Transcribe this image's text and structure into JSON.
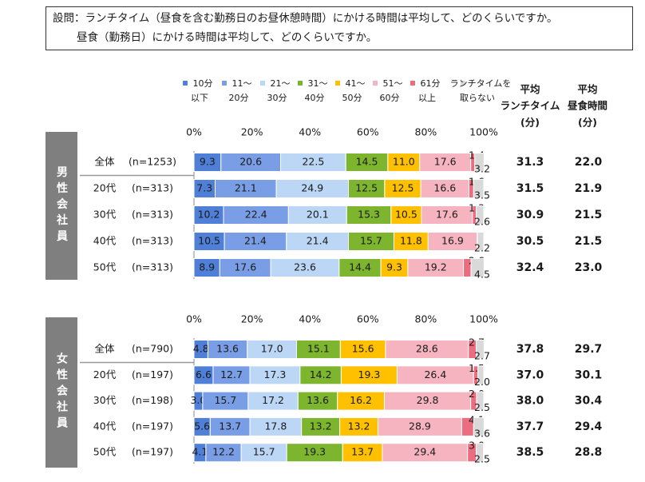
{
  "question": [
    "設問：ランチタイム（昼食を含む勤務日のお昼休憩時間）にかける時間は平均して、どのくらいですか。",
    "昼食（勤務日）にかける時間は平均して、どのくらいですか。"
  ],
  "legend": [
    {
      "name": "10分\n以下",
      "color": "#4f7fd6"
    },
    {
      "name": "11～\n20分",
      "color": "#7a9ee6"
    },
    {
      "name": "21～\n30分",
      "color": "#bcd6f6"
    },
    {
      "name": "31～\n40分",
      "color": "#7db52e"
    },
    {
      "name": "41～\n50分",
      "color": "#ffc000"
    },
    {
      "name": "51～\n60分",
      "color": "#f5b4bf"
    },
    {
      "name": "61分\n以上",
      "color": "#ec6d7f"
    },
    {
      "name": "ランチタイムを\n取らない",
      "color": "#d9d9d9"
    }
  ],
  "columns": [
    "平均\nランチタイム\n(分)",
    "平均\n昼食時間\n(分)"
  ],
  "chart_data": [
    {
      "type": "stacked_bar",
      "group": "男性会社員",
      "categories": [
        "全体",
        "20代",
        "30代",
        "40代",
        "50代"
      ],
      "n_labels": [
        "(n=1253)",
        "(n=313)",
        "(n=313)",
        "(n=313)",
        "(n=313)"
      ],
      "xlim": [
        0,
        100
      ],
      "xticks": [
        {
          "value": 0,
          "label": "0%"
        },
        {
          "value": 20,
          "label": "20%"
        },
        {
          "value": 40,
          "label": "40%"
        },
        {
          "value": 60,
          "label": "60%"
        },
        {
          "value": 80,
          "label": "80%"
        },
        {
          "value": 100,
          "label": "100%"
        }
      ],
      "series": [
        {
          "values": [
            9.3,
            7.3,
            10.2,
            10.5,
            8.9
          ],
          "value_labels": [
            "9.3",
            "7.3",
            "10.2",
            "10.5",
            "8.9"
          ]
        },
        {
          "values": [
            20.6,
            21.1,
            22.4,
            21.4,
            17.6
          ],
          "value_labels": [
            "20.6",
            "21.1",
            "22.4",
            "21.4",
            "17.6"
          ]
        },
        {
          "values": [
            22.5,
            24.9,
            20.1,
            21.4,
            23.6
          ],
          "value_labels": [
            "22.5",
            "24.9",
            "20.1",
            "21.4",
            "23.6"
          ]
        },
        {
          "values": [
            14.5,
            12.5,
            15.3,
            15.7,
            14.4
          ],
          "value_labels": [
            "14.5",
            "12.5",
            "15.3",
            "15.7",
            "14.4"
          ]
        },
        {
          "values": [
            11.0,
            12.5,
            10.5,
            11.8,
            9.3
          ],
          "value_labels": [
            "11.0",
            "12.5",
            "10.5",
            "11.8",
            "9.3"
          ]
        },
        {
          "values": [
            17.6,
            16.6,
            17.6,
            16.9,
            19.2
          ],
          "value_labels": [
            "17.6",
            "16.6",
            "17.6",
            "16.9",
            "19.2"
          ]
        },
        {
          "values": [
            1.4,
            1.6,
            1.3,
            0.1,
            2.6
          ],
          "value_labels": [
            "1.4",
            "1.6",
            "1.3",
            null,
            "2.6"
          ]
        },
        {
          "values": [
            3.2,
            3.5,
            2.6,
            2.2,
            4.5
          ],
          "value_labels": [
            "3.2",
            "3.5",
            "2.6",
            "2.2",
            "4.5"
          ]
        }
      ],
      "avg_lunch": [
        "31.3",
        "31.5",
        "30.9",
        "30.5",
        "32.4"
      ],
      "avg_meal": [
        "22.0",
        "21.9",
        "21.5",
        "21.5",
        "23.0"
      ]
    },
    {
      "type": "stacked_bar",
      "group": "女性会社員",
      "categories": [
        "全体",
        "20代",
        "30代",
        "40代",
        "50代"
      ],
      "n_labels": [
        "(n=790)",
        "(n=197)",
        "(n=198)",
        "(n=197)",
        "(n=197)"
      ],
      "xlim": [
        0,
        100
      ],
      "xticks": [
        {
          "value": 0,
          "label": "0%"
        },
        {
          "value": 20,
          "label": "20%"
        },
        {
          "value": 40,
          "label": "40%"
        },
        {
          "value": 60,
          "label": "60%"
        },
        {
          "value": 80,
          "label": "80%"
        },
        {
          "value": 100,
          "label": "100%"
        }
      ],
      "series": [
        {
          "values": [
            4.8,
            6.6,
            3.0,
            5.6,
            4.1
          ],
          "value_labels": [
            "4.8",
            "6.6",
            "3.0",
            "5.6",
            "4.1"
          ]
        },
        {
          "values": [
            13.6,
            12.7,
            15.7,
            13.7,
            12.2
          ],
          "value_labels": [
            "13.6",
            "12.7",
            "15.7",
            "13.7",
            "12.2"
          ]
        },
        {
          "values": [
            17.0,
            17.3,
            17.2,
            17.8,
            15.7
          ],
          "value_labels": [
            "17.0",
            "17.3",
            "17.2",
            "17.8",
            "15.7"
          ]
        },
        {
          "values": [
            15.1,
            14.2,
            13.6,
            13.2,
            19.3
          ],
          "value_labels": [
            "15.1",
            "14.2",
            "13.6",
            "13.2",
            "19.3"
          ]
        },
        {
          "values": [
            15.6,
            19.3,
            16.2,
            13.2,
            13.7
          ],
          "value_labels": [
            "15.6",
            "19.3",
            "16.2",
            "13.2",
            "13.7"
          ]
        },
        {
          "values": [
            28.6,
            26.4,
            29.8,
            28.9,
            29.4
          ],
          "value_labels": [
            "28.6",
            "26.4",
            "29.8",
            "28.9",
            "29.4"
          ]
        },
        {
          "values": [
            2.7,
            1.5,
            2.0,
            4.1,
            3.0
          ],
          "value_labels": [
            "2.7",
            "1.5",
            "2.0",
            "4.1",
            "3.0"
          ]
        },
        {
          "values": [
            2.7,
            2.0,
            2.5,
            3.6,
            2.5
          ],
          "value_labels": [
            "2.7",
            "2.0",
            "2.5",
            "3.6",
            "2.5"
          ]
        }
      ],
      "avg_lunch": [
        "37.8",
        "37.0",
        "38.0",
        "37.7",
        "38.5"
      ],
      "avg_meal": [
        "29.7",
        "30.1",
        "30.4",
        "29.4",
        "28.8"
      ]
    }
  ]
}
